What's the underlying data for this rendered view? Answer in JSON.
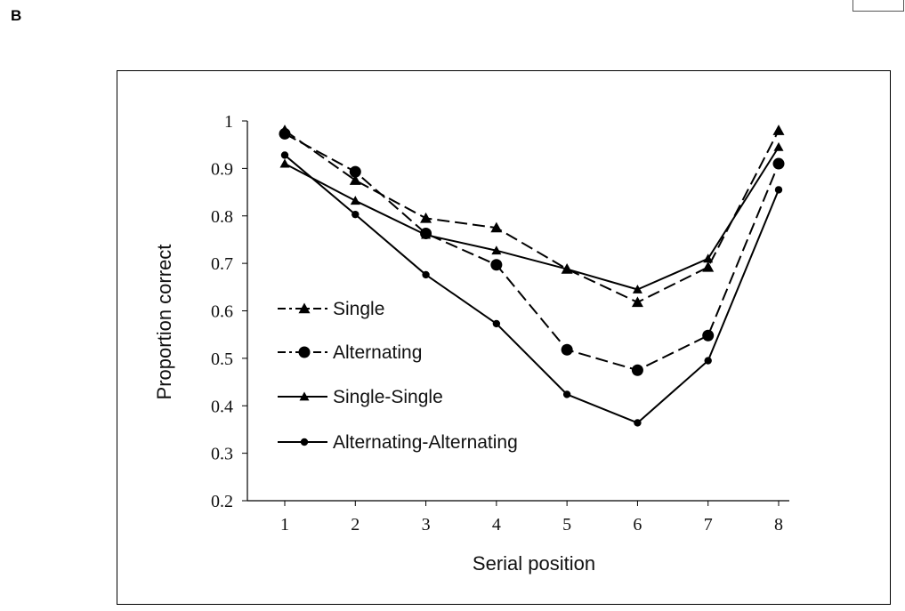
{
  "panel_label": "B",
  "chart_data": {
    "type": "line",
    "title": "",
    "xlabel": "Serial position",
    "ylabel": "Proportion correct",
    "x": [
      1,
      2,
      3,
      4,
      5,
      6,
      7,
      8
    ],
    "xticks": [
      "1",
      "2",
      "3",
      "4",
      "5",
      "6",
      "7",
      "8"
    ],
    "ylim": [
      0.2,
      1.0
    ],
    "yticks": [
      "0.2",
      "0.3",
      "0.4",
      "0.5",
      "0.6",
      "0.7",
      "0.8",
      "0.9",
      "1"
    ],
    "grid": false,
    "legend_position": "left-center",
    "series": [
      {
        "name": "Single",
        "marker": "triangle",
        "line": "dash-dot",
        "values": [
          0.98,
          0.875,
          0.795,
          0.775,
          0.688,
          0.618,
          0.692,
          0.98
        ]
      },
      {
        "name": "Alternating",
        "marker": "circle",
        "line": "dash-dot",
        "values": [
          0.973,
          0.893,
          0.763,
          0.697,
          0.518,
          0.475,
          0.548,
          0.91
        ]
      },
      {
        "name": "Single-Single",
        "marker": "small-triangle",
        "line": "solid",
        "values": [
          0.91,
          0.832,
          0.76,
          0.727,
          0.688,
          0.645,
          0.71,
          0.945
        ]
      },
      {
        "name": "Alternating-Alternating",
        "marker": "small-circle",
        "line": "solid",
        "values": [
          0.928,
          0.803,
          0.676,
          0.573,
          0.424,
          0.364,
          0.495,
          0.855
        ]
      }
    ]
  }
}
